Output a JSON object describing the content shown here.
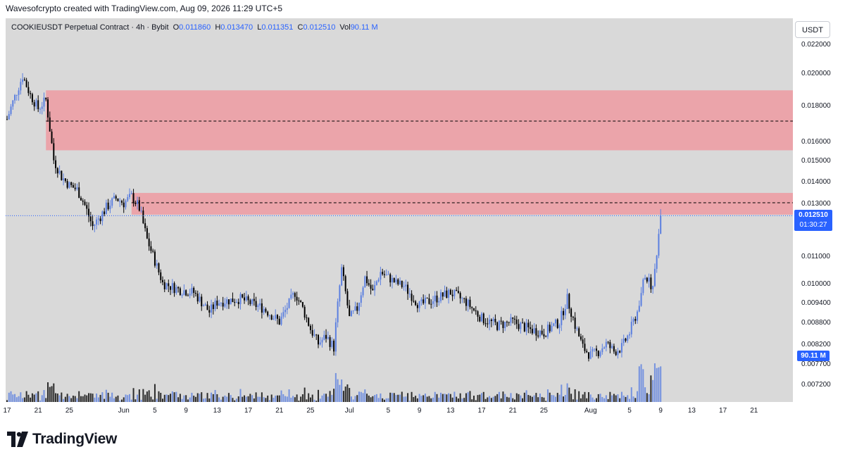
{
  "header": {
    "credit": "Wavesofcrypto created with TradingView.com, Aug 09, 2026 11:29 UTC+5"
  },
  "legend": {
    "symbol": "COOKIEUSDT Perpetual Contract · 4h · Bybit",
    "o_label": "O",
    "o_value": "0.011860",
    "h_label": "H",
    "h_value": "0.013470",
    "l_label": "L",
    "l_value": "0.011351",
    "c_label": "C",
    "c_value": "0.012510",
    "vol_label": "Vol",
    "vol_value": "90.11 M"
  },
  "currency": "USDT",
  "last_price": {
    "price": "0.012510",
    "countdown": "01:30:27"
  },
  "volume_tag": "90.11 M",
  "branding": {
    "logo_text": "TradingView"
  },
  "colors": {
    "up": "#5b7fe0",
    "down": "#000000",
    "zone": "#f0929a",
    "background": "#d9d9d9",
    "accent": "#2962ff"
  },
  "chart_data": {
    "type": "candlestick",
    "timeframe": "4h",
    "y_ticks": [
      "0.022000",
      "0.020000",
      "0.018000",
      "0.016000",
      "0.015000",
      "0.014000",
      "0.013000",
      "0.011000",
      "0.010000",
      "0.009400",
      "0.008800",
      "0.008200",
      "0.007700",
      "0.007200"
    ],
    "x_ticks": [
      "17",
      "21",
      "25",
      "Jun",
      "5",
      "9",
      "13",
      "17",
      "21",
      "25",
      "Jul",
      "5",
      "9",
      "13",
      "17",
      "21",
      "25",
      "Aug",
      "5",
      "9",
      "13",
      "17",
      "21"
    ],
    "zones": [
      {
        "low": 0.0155,
        "high": 0.0189,
        "mid": 0.0171,
        "from": "May 22",
        "to": "Aug 21"
      },
      {
        "low": 0.01255,
        "high": 0.01345,
        "mid": 0.013,
        "from": "Jun 2",
        "to": "Aug 21"
      }
    ],
    "last_price": 0.01251,
    "path": [
      [
        "May 17",
        0.0172
      ],
      [
        "May 18",
        0.0185
      ],
      [
        "May 19",
        0.0198
      ],
      [
        "May 20",
        0.0186
      ],
      [
        "May 21",
        0.0178
      ],
      [
        "May 22",
        0.0183
      ],
      [
        "May 23",
        0.015
      ],
      [
        "May 24",
        0.0142
      ],
      [
        "May 25",
        0.0138
      ],
      [
        "May 26",
        0.0136
      ],
      [
        "May 27",
        0.0129
      ],
      [
        "May 28",
        0.0121
      ],
      [
        "May 29",
        0.0125
      ],
      [
        "May 30",
        0.0129
      ],
      [
        "May 31",
        0.0132
      ],
      [
        "Jun 1",
        0.013
      ],
      [
        "Jun 2",
        0.0133
      ],
      [
        "Jun 3",
        0.0128
      ],
      [
        "Jun 4",
        0.0116
      ],
      [
        "Jun 5",
        0.0108
      ],
      [
        "Jun 6",
        0.01
      ],
      [
        "Jun 8",
        0.0098
      ],
      [
        "Jun 10",
        0.0097
      ],
      [
        "Jun 12",
        0.0091
      ],
      [
        "Jun 13",
        0.0094
      ],
      [
        "Jun 16",
        0.0095
      ],
      [
        "Jun 19",
        0.0092
      ],
      [
        "Jun 21",
        0.0088
      ],
      [
        "Jun 23",
        0.0097
      ],
      [
        "Jun 24",
        0.0092
      ],
      [
        "Jun 25",
        0.0086
      ],
      [
        "Jun 26",
        0.0082
      ],
      [
        "Jun 27",
        0.0084
      ],
      [
        "Jun 28",
        0.0081
      ],
      [
        "Jun 29",
        0.0105
      ],
      [
        "Jun 30",
        0.0089
      ],
      [
        "Jul 1",
        0.0092
      ],
      [
        "Jul 2",
        0.0102
      ],
      [
        "Jul 3",
        0.0097
      ],
      [
        "Jul 4",
        0.0104
      ],
      [
        "Jul 6",
        0.01
      ],
      [
        "Jul 7",
        0.0099
      ],
      [
        "Jul 9",
        0.0093
      ],
      [
        "Jul 11",
        0.0095
      ],
      [
        "Jul 13",
        0.0097
      ],
      [
        "Jul 15",
        0.0094
      ],
      [
        "Jul 17",
        0.0089
      ],
      [
        "Jul 19",
        0.0087
      ],
      [
        "Jul 21",
        0.0088
      ],
      [
        "Jul 23",
        0.0086
      ],
      [
        "Jul 25",
        0.0085
      ],
      [
        "Jul 27",
        0.0088
      ],
      [
        "Jul 28",
        0.0095
      ],
      [
        "Jul 29",
        0.0087
      ],
      [
        "Jul 30",
        0.0081
      ],
      [
        "Jul 31",
        0.0079
      ],
      [
        "Aug 1",
        0.008
      ],
      [
        "Aug 2",
        0.0082
      ],
      [
        "Aug 3",
        0.008
      ],
      [
        "Aug 4",
        0.0081
      ],
      [
        "Aug 5",
        0.0085
      ],
      [
        "Aug 6",
        0.0091
      ],
      [
        "Aug 7",
        0.0103
      ],
      [
        "Aug 8",
        0.0098
      ],
      [
        "Aug 9",
        0.0125
      ]
    ]
  }
}
